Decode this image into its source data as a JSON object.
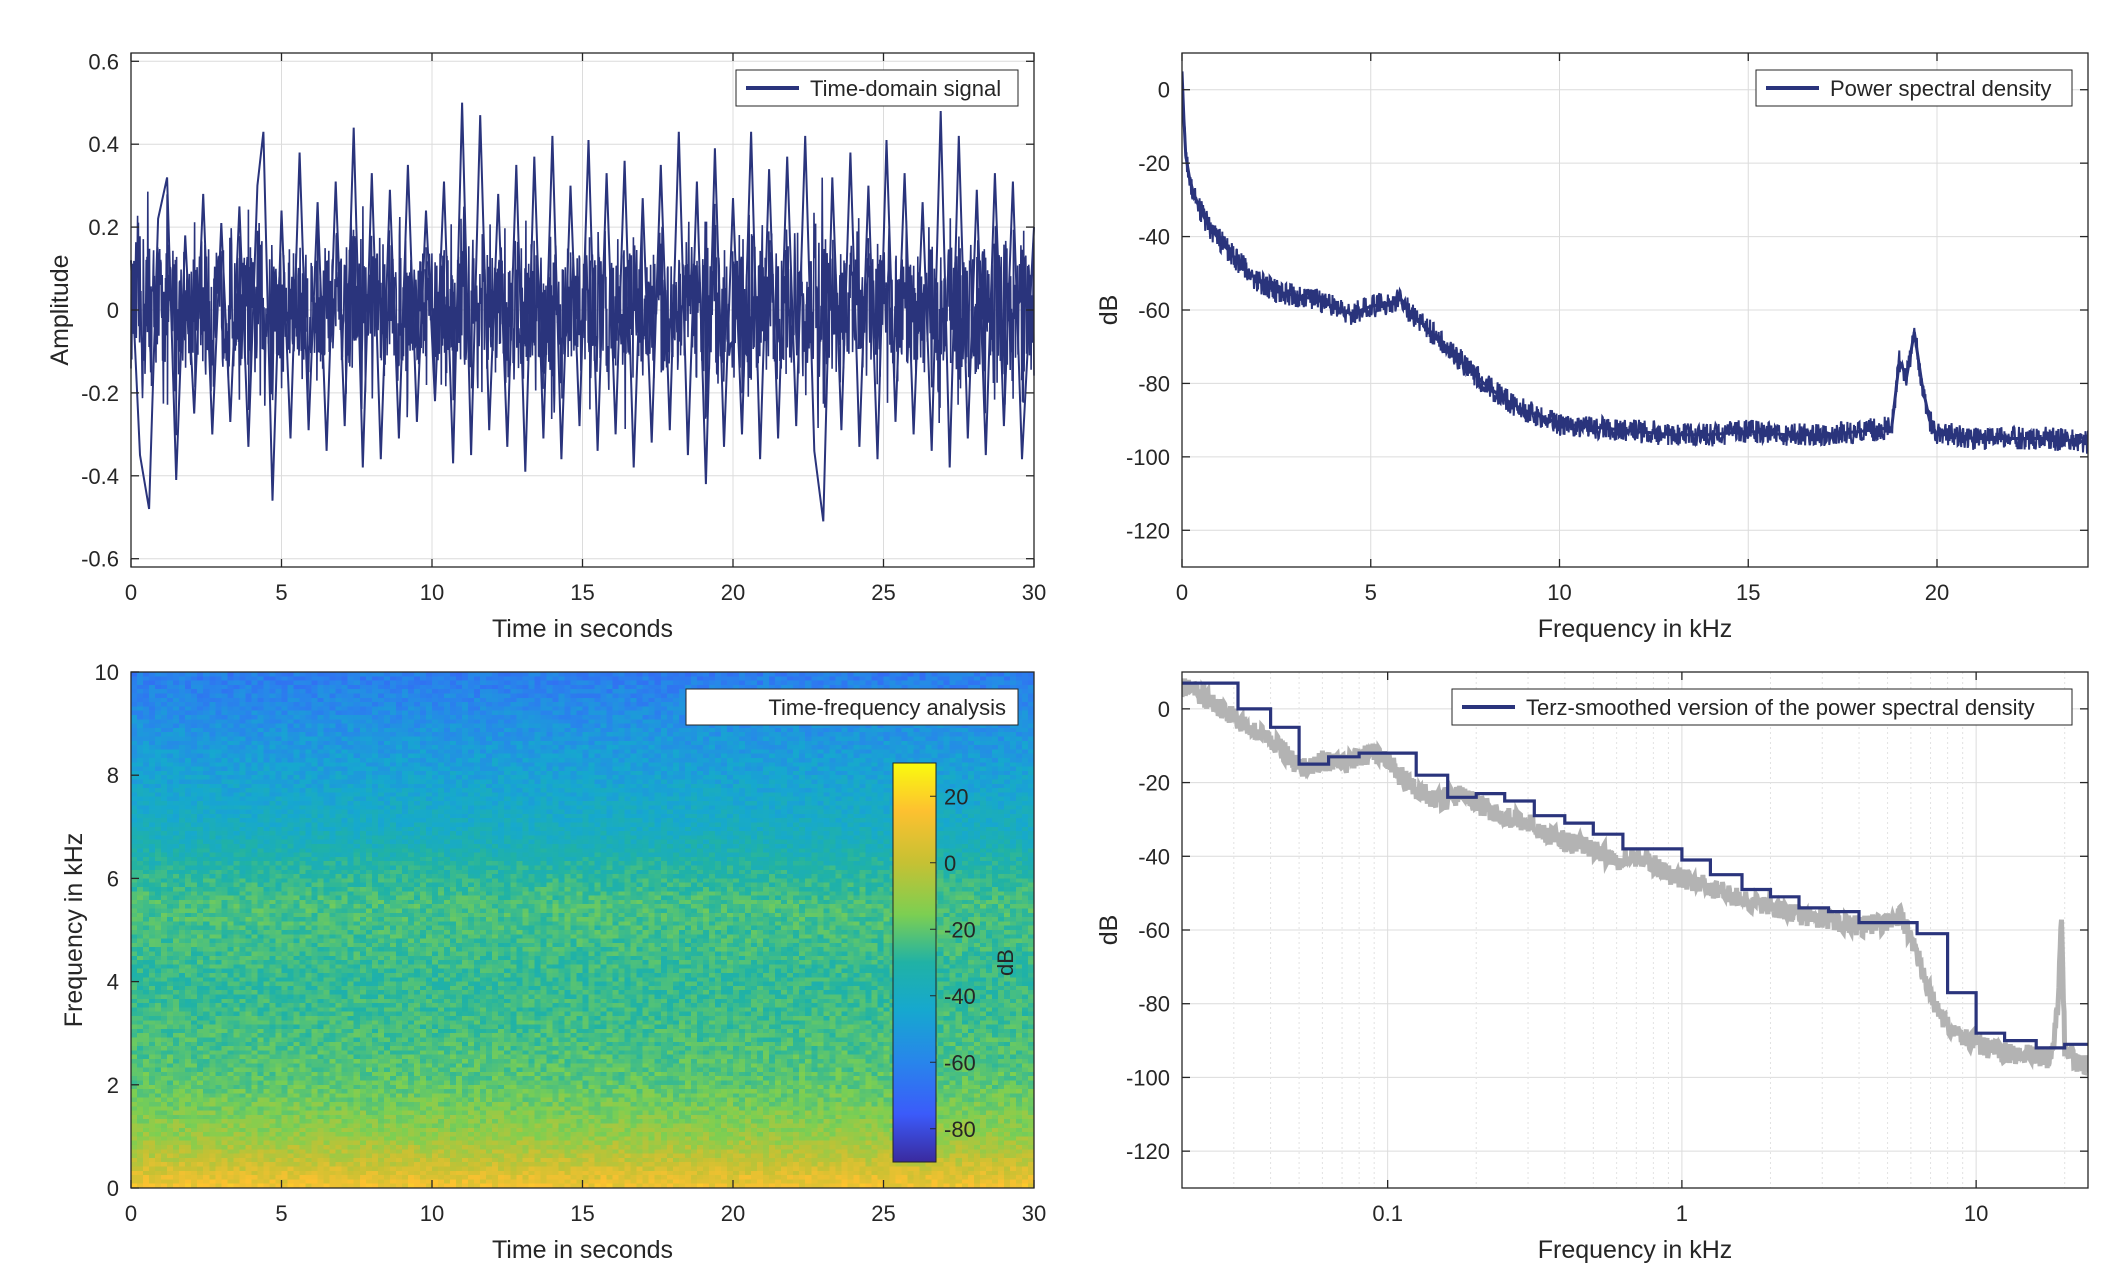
{
  "chart_data": [
    {
      "type": "line",
      "xlabel": "Time in seconds",
      "ylabel": "Amplitude",
      "xlim": [
        0,
        30
      ],
      "ylim": [
        -0.62,
        0.62
      ],
      "xticks": [
        0,
        5,
        10,
        15,
        20,
        25,
        30
      ],
      "yticks": [
        -0.6,
        -0.4,
        -0.2,
        0,
        0.2,
        0.4,
        0.6
      ],
      "grid": true,
      "legend": "top-right",
      "series": [
        {
          "name": "Time-domain signal",
          "color": "#2a347c",
          "x": [
            0,
            0.3,
            0.6,
            0.9,
            1.2,
            1.5,
            1.8,
            2.1,
            2.4,
            2.7,
            3.0,
            3.3,
            3.6,
            3.9,
            4.2,
            4.4,
            4.7,
            5.0,
            5.3,
            5.6,
            5.9,
            6.2,
            6.5,
            6.8,
            7.1,
            7.4,
            7.7,
            8.0,
            8.3,
            8.6,
            8.9,
            9.2,
            9.5,
            9.8,
            10.1,
            10.4,
            10.7,
            11.0,
            11.3,
            11.6,
            11.9,
            12.2,
            12.5,
            12.8,
            13.1,
            13.4,
            13.7,
            14.0,
            14.3,
            14.6,
            14.9,
            15.2,
            15.5,
            15.8,
            16.1,
            16.4,
            16.7,
            17.0,
            17.3,
            17.6,
            17.9,
            18.2,
            18.5,
            18.8,
            19.1,
            19.4,
            19.7,
            20.0,
            20.3,
            20.6,
            20.9,
            21.2,
            21.5,
            21.8,
            22.1,
            22.4,
            22.7,
            23.0,
            23.3,
            23.6,
            23.9,
            24.2,
            24.5,
            24.8,
            25.1,
            25.4,
            25.7,
            26.0,
            26.3,
            26.6,
            26.9,
            27.2,
            27.5,
            27.8,
            28.1,
            28.4,
            28.7,
            29.0,
            29.3,
            29.6,
            30.0
          ],
          "values": [
            0.12,
            -0.35,
            -0.48,
            0.22,
            0.32,
            -0.41,
            0.18,
            -0.25,
            0.28,
            -0.3,
            0.21,
            -0.27,
            0.25,
            -0.33,
            0.3,
            0.43,
            -0.46,
            0.24,
            -0.31,
            0.38,
            -0.29,
            0.26,
            -0.34,
            0.31,
            -0.28,
            0.44,
            -0.38,
            0.33,
            -0.36,
            0.29,
            -0.31,
            0.35,
            -0.27,
            0.24,
            -0.22,
            0.31,
            -0.37,
            0.5,
            -0.35,
            0.47,
            -0.29,
            0.28,
            -0.33,
            0.35,
            -0.39,
            0.37,
            -0.31,
            0.42,
            -0.36,
            0.3,
            -0.28,
            0.41,
            -0.34,
            0.33,
            -0.3,
            0.36,
            -0.38,
            0.27,
            -0.32,
            0.35,
            -0.29,
            0.43,
            -0.35,
            0.31,
            -0.42,
            0.39,
            -0.33,
            0.27,
            -0.3,
            0.43,
            -0.36,
            0.34,
            -0.31,
            0.37,
            -0.28,
            0.42,
            -0.34,
            -0.51,
            0.32,
            -0.29,
            0.38,
            -0.33,
            0.3,
            -0.36,
            0.41,
            -0.27,
            0.33,
            -0.3,
            0.26,
            -0.34,
            0.48,
            -0.38,
            0.42,
            -0.31,
            0.29,
            -0.35,
            0.33,
            -0.28,
            0.31,
            -0.36,
            0.2
          ]
        }
      ]
    },
    {
      "type": "line",
      "xlabel": "Frequency in kHz",
      "ylabel": "dB",
      "xlim": [
        0,
        24
      ],
      "ylim": [
        -130,
        10
      ],
      "xticks": [
        0,
        5,
        10,
        15,
        20
      ],
      "yticks": [
        -120,
        -100,
        -80,
        -60,
        -40,
        -20,
        0
      ],
      "grid": true,
      "legend": "top-right",
      "series": [
        {
          "name": "Power spectral density",
          "color": "#2a347c",
          "x": [
            0,
            0.05,
            0.1,
            0.2,
            0.3,
            0.5,
            0.7,
            1.0,
            1.5,
            2.0,
            2.5,
            3.0,
            3.5,
            4.0,
            4.5,
            5.0,
            5.5,
            5.8,
            6.0,
            6.5,
            7.0,
            7.5,
            8.0,
            8.5,
            9.0,
            9.5,
            10.0,
            11.0,
            12.0,
            13.0,
            14.0,
            15.0,
            16.0,
            17.0,
            18.0,
            18.8,
            19.0,
            19.2,
            19.4,
            19.6,
            19.8,
            20.0,
            20.5,
            21.0,
            22.0,
            23.0,
            24.0
          ],
          "values": [
            5,
            -8,
            -18,
            -24,
            -28,
            -33,
            -37,
            -41,
            -47,
            -52,
            -55,
            -56,
            -57,
            -59,
            -61,
            -59,
            -58,
            -57,
            -60,
            -65,
            -70,
            -75,
            -80,
            -84,
            -87,
            -89,
            -91,
            -92,
            -93,
            -94,
            -94,
            -93,
            -94,
            -94,
            -93,
            -92,
            -74,
            -78,
            -66,
            -80,
            -90,
            -94,
            -94,
            -95,
            -95,
            -95,
            -96
          ]
        }
      ]
    },
    {
      "type": "heatmap",
      "title": "Time-frequency analysis",
      "xlabel": "Time in seconds",
      "ylabel": "Frequency in kHz",
      "xlim": [
        0,
        30
      ],
      "ylim": [
        0,
        10
      ],
      "xticks": [
        0,
        5,
        10,
        15,
        20,
        25,
        30
      ],
      "yticks": [
        0,
        2,
        4,
        6,
        8,
        10
      ],
      "colorbar": {
        "label": "dB",
        "range": [
          -90,
          30
        ],
        "ticks": [
          20,
          0,
          -20,
          -40,
          -60,
          -80
        ],
        "placement": "right-inside"
      },
      "frequency_profile": {
        "frequency_khz": [
          0,
          0.2,
          0.5,
          1,
          1.5,
          2,
          3,
          4,
          5,
          5.5,
          6,
          7,
          8,
          9,
          10
        ],
        "db": [
          12,
          8,
          0,
          -10,
          -15,
          -20,
          -24,
          -27,
          -24,
          -23,
          -28,
          -40,
          -47,
          -55,
          -63
        ]
      }
    },
    {
      "type": "line",
      "xlabel": "Frequency in kHz",
      "ylabel": "dB",
      "xscale": "log",
      "xlim": [
        0.02,
        24
      ],
      "ylim": [
        -130,
        10
      ],
      "xticks": [
        0.1,
        1,
        10
      ],
      "xticklabels": [
        "0.1",
        "1",
        "10"
      ],
      "yticks": [
        -120,
        -100,
        -80,
        -60,
        -40,
        -20,
        0
      ],
      "grid": true,
      "legend": "top-right",
      "series": [
        {
          "name": "",
          "color": "#b3b3b3",
          "x": [
            0.02,
            0.025,
            0.03,
            0.035,
            0.04,
            0.045,
            0.05,
            0.06,
            0.07,
            0.08,
            0.09,
            0.1,
            0.11,
            0.125,
            0.15,
            0.18,
            0.2,
            0.25,
            0.3,
            0.35,
            0.4,
            0.5,
            0.6,
            0.7,
            0.8,
            0.9,
            1.0,
            1.2,
            1.5,
            2.0,
            2.5,
            3.0,
            4.0,
            5.0,
            5.5,
            6.0,
            6.5,
            7.0,
            8.0,
            9.0,
            10.0,
            12.0,
            15.0,
            18.0,
            19.0,
            19.5,
            20.0,
            22.0,
            24.0
          ],
          "values": [
            6,
            2,
            -2,
            -6,
            -8,
            -12,
            -16,
            -14,
            -15,
            -13,
            -12,
            -14,
            -18,
            -22,
            -25,
            -23,
            -26,
            -29,
            -31,
            -34,
            -36,
            -38,
            -41,
            -40,
            -42,
            -45,
            -46,
            -48,
            -51,
            -54,
            -56,
            -57,
            -59,
            -58,
            -56,
            -62,
            -70,
            -78,
            -86,
            -89,
            -91,
            -93,
            -94,
            -95,
            -80,
            -55,
            -92,
            -96,
            -97
          ]
        },
        {
          "name": "Terz-smoothed version of the power spectral density",
          "color": "#2a347c",
          "x": [
            0.02,
            0.025,
            0.031,
            0.04,
            0.05,
            0.063,
            0.08,
            0.1,
            0.125,
            0.16,
            0.2,
            0.25,
            0.315,
            0.4,
            0.5,
            0.63,
            0.8,
            1.0,
            1.25,
            1.6,
            2.0,
            2.5,
            3.15,
            4.0,
            5.0,
            6.3,
            8.0,
            10.0,
            12.5,
            16.0,
            20.0
          ],
          "values": [
            7,
            7,
            0,
            -5,
            -15,
            -13,
            -12,
            -12,
            -18,
            -24,
            -23,
            -25,
            -29,
            -31,
            -34,
            -38,
            -38,
            -41,
            -45,
            -49,
            -51,
            -54,
            -55,
            -58,
            -58,
            -61,
            -77,
            -88,
            -90,
            -92,
            -91
          ]
        }
      ]
    }
  ]
}
